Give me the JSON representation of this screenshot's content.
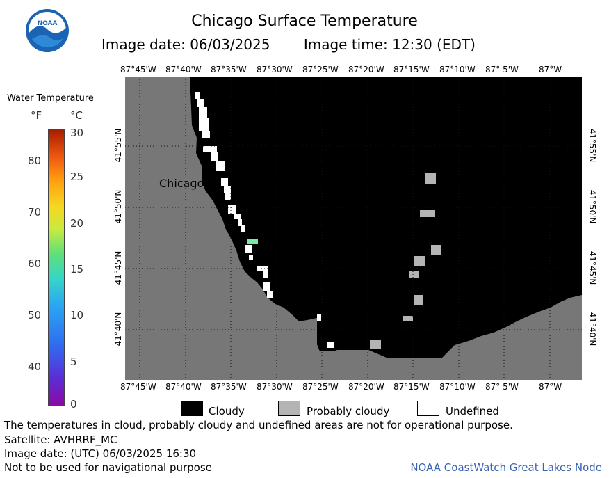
{
  "header": {
    "title": "Chicago Surface Temperature",
    "image_date": "Image date: 06/03/2025",
    "image_time": "Image time: 12:30 (EDT)"
  },
  "logo": {
    "text": "NOAA"
  },
  "map": {
    "lon_labels": [
      "87°45'W",
      "87°40'W",
      "87°35'W",
      "87°30'W",
      "87°25'W",
      "87°20'W",
      "87°15'W",
      "87°10'W",
      "87° 5'W",
      "87°W"
    ],
    "lat_labels": [
      "41°55'N",
      "41°50'N",
      "41°45'N",
      "41°40'N"
    ],
    "city": "Chicago",
    "colors": {
      "land": "#777777",
      "cloudy": "#000000",
      "probably_cloudy": "#b4b4b4",
      "undefined": "#ffffff",
      "warm_water": "#7ee8a8"
    }
  },
  "legend": {
    "title": "Water Temperature",
    "unit_f": "°F",
    "unit_c": "°C",
    "f_ticks": [
      "80",
      "70",
      "60",
      "50",
      "40"
    ],
    "c_ticks": [
      "30",
      "25",
      "20",
      "15",
      "10",
      "5",
      "0"
    ],
    "range_c": [
      0,
      30
    ],
    "categories": [
      {
        "label": "Cloudy",
        "color": "#000000"
      },
      {
        "label": "Probably cloudy",
        "color": "#b4b4b4"
      },
      {
        "label": "Undefined",
        "color": "#ffffff"
      }
    ]
  },
  "notes": {
    "disclaimer": "The temperatures in cloud, probably cloudy and undefined areas are not for operational purpose.",
    "satellite": "Satellite: AVHRRF_MC",
    "utc_date": "Image date: (UTC) 06/03/2025  16:30",
    "navigation": "Not to be used for navigational purpose",
    "credit": "NOAA CoastWatch Great Lakes Node"
  }
}
